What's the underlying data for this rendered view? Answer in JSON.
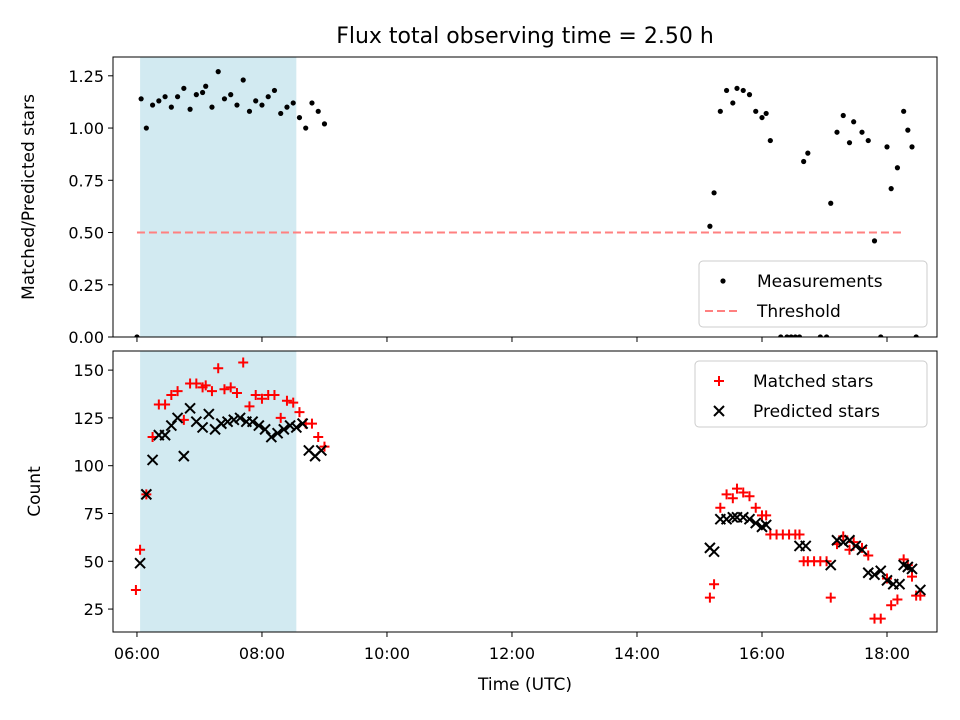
{
  "figure": {
    "title": "Flux total observing time = 2.50 h",
    "xlabel": "Time (UTC)",
    "x_tick_labels": [
      "06:00",
      "08:00",
      "10:00",
      "12:00",
      "14:00",
      "16:00",
      "18:00"
    ],
    "colors": {
      "measurements": "#000000",
      "threshold": "#ff8080",
      "matched": "#ff0000",
      "predicted": "#000000",
      "highlight_band": "#add8e6"
    }
  },
  "chart_data": [
    {
      "type": "scatter",
      "ylabel": "Matched/Predicted stars",
      "xlim": [
        "05:37",
        "18:48"
      ],
      "ylim": [
        0,
        1.34
      ],
      "y_ticks": [
        0.0,
        0.25,
        0.5,
        0.75,
        1.0,
        1.25
      ],
      "y_tick_labels": [
        "0.00",
        "0.25",
        "0.50",
        "0.75",
        "1.00",
        "1.25"
      ],
      "highlight_band": [
        "06:03",
        "08:33"
      ],
      "legend": {
        "position": "lower right",
        "entries": [
          "Measurements",
          "Threshold"
        ]
      },
      "threshold": {
        "name": "Threshold",
        "y": 0.5,
        "x_range": [
          "06:00",
          "18:14"
        ]
      },
      "series": [
        {
          "name": "Measurements",
          "marker": "dot",
          "points": [
            [
              "06:00",
              0.0
            ],
            [
              "06:04",
              1.14
            ],
            [
              "06:09",
              1.0
            ],
            [
              "06:15",
              1.11
            ],
            [
              "06:21",
              1.13
            ],
            [
              "06:27",
              1.15
            ],
            [
              "06:33",
              1.1
            ],
            [
              "06:39",
              1.15
            ],
            [
              "06:45",
              1.19
            ],
            [
              "06:51",
              1.09
            ],
            [
              "06:57",
              1.16
            ],
            [
              "07:03",
              1.17
            ],
            [
              "07:06",
              1.2
            ],
            [
              "07:12",
              1.1
            ],
            [
              "07:18",
              1.27
            ],
            [
              "07:24",
              1.14
            ],
            [
              "07:30",
              1.16
            ],
            [
              "07:36",
              1.11
            ],
            [
              "07:42",
              1.23
            ],
            [
              "07:48",
              1.08
            ],
            [
              "07:54",
              1.13
            ],
            [
              "08:00",
              1.11
            ],
            [
              "08:06",
              1.15
            ],
            [
              "08:12",
              1.18
            ],
            [
              "08:18",
              1.07
            ],
            [
              "08:24",
              1.1
            ],
            [
              "08:30",
              1.12
            ],
            [
              "08:36",
              1.05
            ],
            [
              "08:42",
              1.0
            ],
            [
              "08:48",
              1.12
            ],
            [
              "08:54",
              1.08
            ],
            [
              "09:00",
              1.02
            ],
            [
              "15:10",
              0.53
            ],
            [
              "15:14",
              0.69
            ],
            [
              "15:20",
              1.08
            ],
            [
              "15:26",
              1.18
            ],
            [
              "15:32",
              1.12
            ],
            [
              "15:36",
              1.19
            ],
            [
              "15:42",
              1.18
            ],
            [
              "15:48",
              1.16
            ],
            [
              "15:54",
              1.08
            ],
            [
              "16:00",
              1.05
            ],
            [
              "16:04",
              1.07
            ],
            [
              "16:08",
              0.94
            ],
            [
              "16:18",
              0.0
            ],
            [
              "16:24",
              0.0
            ],
            [
              "16:28",
              0.0
            ],
            [
              "16:32",
              0.0
            ],
            [
              "16:36",
              0.0
            ],
            [
              "16:40",
              0.84
            ],
            [
              "16:44",
              0.88
            ],
            [
              "16:56",
              0.0
            ],
            [
              "17:02",
              0.0
            ],
            [
              "17:06",
              0.64
            ],
            [
              "17:12",
              0.98
            ],
            [
              "17:18",
              1.06
            ],
            [
              "17:24",
              0.93
            ],
            [
              "17:28",
              1.03
            ],
            [
              "17:36",
              0.98
            ],
            [
              "17:42",
              0.94
            ],
            [
              "17:48",
              0.46
            ],
            [
              "17:54",
              0.0
            ],
            [
              "18:00",
              0.91
            ],
            [
              "18:04",
              0.71
            ],
            [
              "18:10",
              0.81
            ],
            [
              "18:16",
              1.08
            ],
            [
              "18:20",
              0.99
            ],
            [
              "18:24",
              0.91
            ],
            [
              "18:28",
              0.0
            ]
          ]
        }
      ]
    },
    {
      "type": "scatter",
      "ylabel": "Count",
      "xlim": [
        "05:37",
        "18:48"
      ],
      "ylim": [
        13,
        160
      ],
      "y_ticks": [
        25,
        50,
        75,
        100,
        125,
        150
      ],
      "y_tick_labels": [
        "25",
        "50",
        "75",
        "100",
        "125",
        "150"
      ],
      "highlight_band": [
        "06:03",
        "08:33"
      ],
      "legend": {
        "position": "upper right",
        "entries": [
          "Matched stars",
          "Predicted stars"
        ]
      },
      "series": [
        {
          "name": "Matched stars",
          "marker": "plus",
          "points": [
            [
              "05:59",
              35
            ],
            [
              "06:03",
              56
            ],
            [
              "06:09",
              85
            ],
            [
              "06:15",
              115
            ],
            [
              "06:21",
              132
            ],
            [
              "06:27",
              132
            ],
            [
              "06:33",
              137
            ],
            [
              "06:39",
              139
            ],
            [
              "06:45",
              124
            ],
            [
              "06:51",
              143
            ],
            [
              "06:57",
              143
            ],
            [
              "07:03",
              141
            ],
            [
              "07:06",
              142
            ],
            [
              "07:12",
              139
            ],
            [
              "07:18",
              151
            ],
            [
              "07:24",
              140
            ],
            [
              "07:30",
              141
            ],
            [
              "07:36",
              138
            ],
            [
              "07:42",
              154
            ],
            [
              "07:48",
              131
            ],
            [
              "07:54",
              137
            ],
            [
              "08:00",
              135
            ],
            [
              "08:06",
              137
            ],
            [
              "08:12",
              137
            ],
            [
              "08:18",
              125
            ],
            [
              "08:24",
              134
            ],
            [
              "08:30",
              133
            ],
            [
              "08:36",
              128
            ],
            [
              "08:42",
              122
            ],
            [
              "08:48",
              122
            ],
            [
              "08:54",
              115
            ],
            [
              "09:00",
              110
            ],
            [
              "15:10",
              31
            ],
            [
              "15:14",
              38
            ],
            [
              "15:20",
              78
            ],
            [
              "15:26",
              85
            ],
            [
              "15:32",
              83
            ],
            [
              "15:36",
              88
            ],
            [
              "15:42",
              86
            ],
            [
              "15:48",
              84
            ],
            [
              "15:54",
              78
            ],
            [
              "16:00",
              74
            ],
            [
              "16:04",
              74
            ],
            [
              "16:08",
              64
            ],
            [
              "16:14",
              64
            ],
            [
              "16:20",
              64
            ],
            [
              "16:26",
              64
            ],
            [
              "16:32",
              64
            ],
            [
              "16:36",
              64
            ],
            [
              "16:40",
              50
            ],
            [
              "16:44",
              50
            ],
            [
              "16:50",
              50
            ],
            [
              "16:56",
              50
            ],
            [
              "17:02",
              50
            ],
            [
              "17:06",
              31
            ],
            [
              "17:12",
              59
            ],
            [
              "17:18",
              63
            ],
            [
              "17:24",
              56
            ],
            [
              "17:28",
              60
            ],
            [
              "17:36",
              57
            ],
            [
              "17:42",
              53
            ],
            [
              "17:48",
              20
            ],
            [
              "17:54",
              20
            ],
            [
              "18:00",
              41
            ],
            [
              "18:04",
              27
            ],
            [
              "18:10",
              30
            ],
            [
              "18:16",
              51
            ],
            [
              "18:20",
              48
            ],
            [
              "18:24",
              42
            ],
            [
              "18:28",
              32
            ],
            [
              "18:32",
              32
            ]
          ]
        },
        {
          "name": "Predicted stars",
          "marker": "cross",
          "points": [
            [
              "06:03",
              49
            ],
            [
              "06:09",
              85
            ],
            [
              "06:15",
              103
            ],
            [
              "06:21",
              116
            ],
            [
              "06:27",
              116
            ],
            [
              "06:33",
              121
            ],
            [
              "06:39",
              125
            ],
            [
              "06:45",
              105
            ],
            [
              "06:51",
              130
            ],
            [
              "06:57",
              123
            ],
            [
              "07:03",
              120
            ],
            [
              "07:09",
              127
            ],
            [
              "07:15",
              119
            ],
            [
              "07:21",
              122
            ],
            [
              "07:27",
              123
            ],
            [
              "07:33",
              124
            ],
            [
              "07:39",
              125
            ],
            [
              "07:45",
              123
            ],
            [
              "07:51",
              123
            ],
            [
              "07:57",
              121
            ],
            [
              "08:03",
              119
            ],
            [
              "08:09",
              115
            ],
            [
              "08:15",
              117
            ],
            [
              "08:21",
              119
            ],
            [
              "08:27",
              121
            ],
            [
              "08:33",
              120
            ],
            [
              "08:39",
              122
            ],
            [
              "08:45",
              108
            ],
            [
              "08:51",
              105
            ],
            [
              "08:57",
              108
            ],
            [
              "15:10",
              57
            ],
            [
              "15:14",
              55
            ],
            [
              "15:20",
              72
            ],
            [
              "15:26",
              72
            ],
            [
              "15:32",
              73
            ],
            [
              "15:36",
              73
            ],
            [
              "15:42",
              73
            ],
            [
              "15:48",
              72
            ],
            [
              "15:54",
              70
            ],
            [
              "16:00",
              68
            ],
            [
              "16:04",
              69
            ],
            [
              "16:36",
              58
            ],
            [
              "16:42",
              58
            ],
            [
              "17:06",
              48
            ],
            [
              "17:12",
              61
            ],
            [
              "17:18",
              60
            ],
            [
              "17:24",
              61
            ],
            [
              "17:30",
              58
            ],
            [
              "17:36",
              56
            ],
            [
              "17:42",
              44
            ],
            [
              "17:48",
              43
            ],
            [
              "17:54",
              45
            ],
            [
              "18:00",
              40
            ],
            [
              "18:06",
              38
            ],
            [
              "18:12",
              38
            ],
            [
              "18:16",
              48
            ],
            [
              "18:20",
              47
            ],
            [
              "18:24",
              46
            ],
            [
              "18:32",
              35
            ]
          ]
        }
      ]
    }
  ]
}
